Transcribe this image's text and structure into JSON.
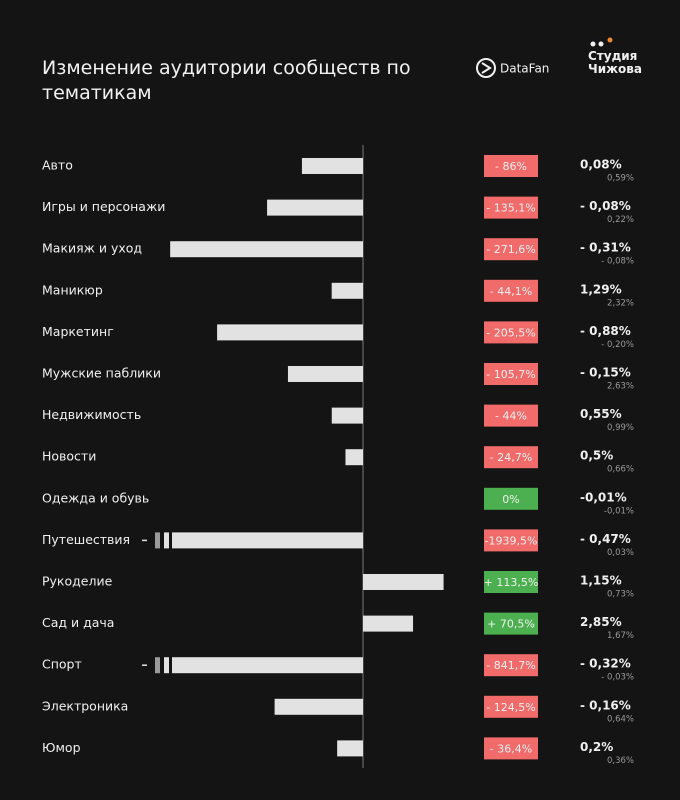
{
  "chart_data": {
    "type": "bar",
    "title": "Изменение аудитории сообществ по тематикам",
    "logos": [
      "DataFan",
      "Студия Чижова"
    ],
    "categories": [
      "Авто",
      "Игры и персонажи",
      "Макияж и уход",
      "Маникюр",
      "Маркетинг",
      "Мужские паблики",
      "Недвижимость",
      "Новости",
      "Одежда и обувь",
      "Путешествия",
      "Рукоделие",
      "Сад и дача",
      "Спорт",
      "Электроника",
      "Юмор"
    ],
    "values": [
      -86,
      -135.1,
      -271.6,
      -44.1,
      -205.5,
      -105.7,
      -44,
      -24.7,
      0,
      -1939.5,
      113.5,
      70.5,
      -841.7,
      -124.5,
      -36.4
    ],
    "value_labels": [
      "- 86%",
      "- 135,1%",
      "- 271,6%",
      "- 44,1%",
      "- 205,5%",
      "- 105,7%",
      "- 44%",
      "- 24,7%",
      "0%",
      "-1939,5%",
      "+ 113,5%",
      "+ 70,5%",
      "- 841,7%",
      "- 124,5%",
      "- 36,4%"
    ],
    "share_labels": [
      "0,08%",
      "- 0,08%",
      "- 0,31%",
      "1,29%",
      "- 0,88%",
      "- 0,15%",
      "0,55%",
      "0,5%",
      "-0,01%",
      "- 0,47%",
      "1,15%",
      "2,85%",
      "- 0,32%",
      "- 0,16%",
      "0,2%"
    ],
    "share_prev_labels": [
      "0,59%",
      "0,22%",
      "- 0,08%",
      "2,32%",
      "- 0,20%",
      "2,63%",
      "0,99%",
      "0,66%",
      "-0,01%",
      "0,03%",
      "0,73%",
      "1,67%",
      "- 0,03%",
      "0,64%",
      "0,36%"
    ],
    "xlim": [
      -300,
      150
    ],
    "color": "#e2e2e2",
    "negative_color": "#f26b6b",
    "positive_color": "#4cb050"
  }
}
